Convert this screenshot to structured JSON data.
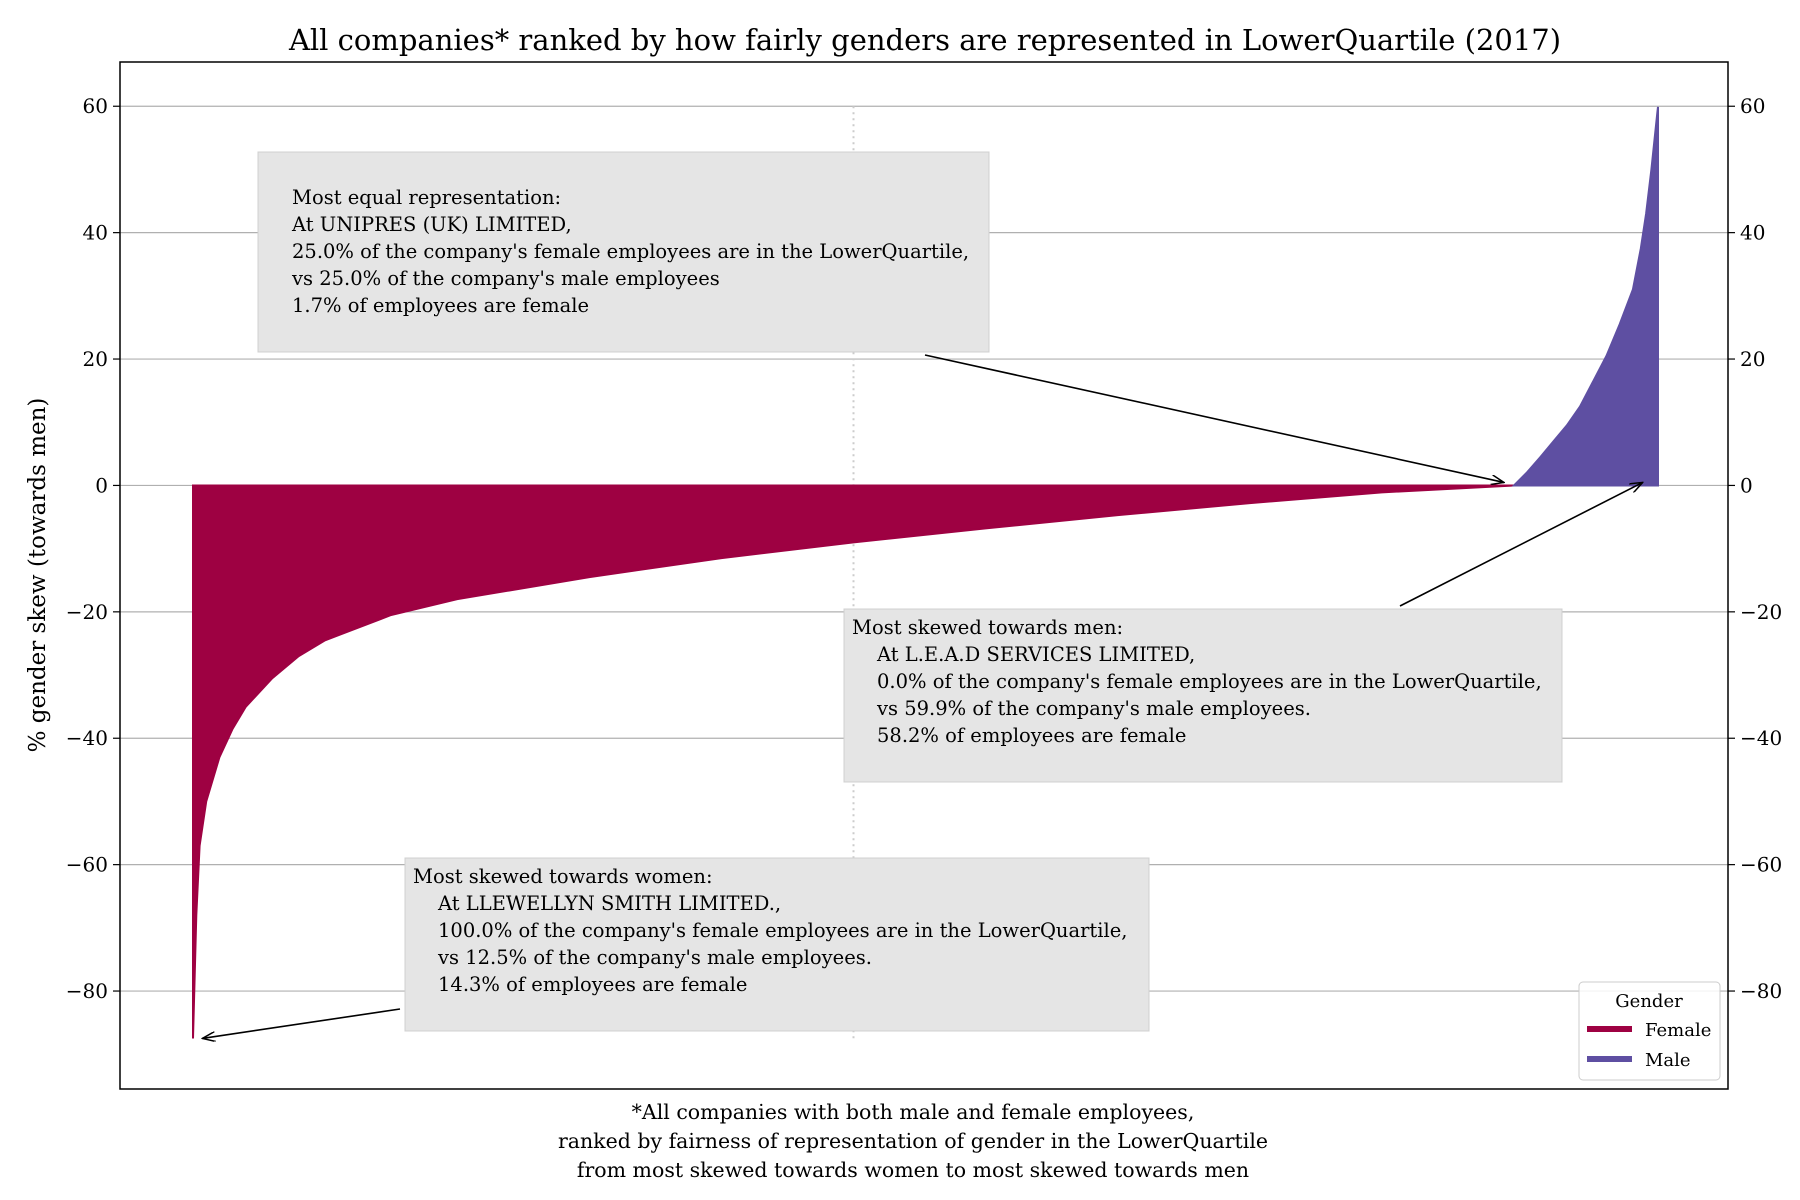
{
  "chart_data": {
    "type": "area",
    "title": "All companies* ranked by how fairly genders are represented in LowerQuartile (2017)",
    "xlabel": "",
    "ylabel": "% gender skew (towards men)",
    "ylim": [
      -95.5,
      67
    ],
    "yticks": [
      60,
      40,
      20,
      0,
      -20,
      -40,
      -60,
      -80
    ],
    "ytick_labels": [
      "60",
      "40",
      "20",
      "0",
      "−20",
      "−40",
      "−60",
      "−80"
    ],
    "grid": true,
    "legend_placement": "lower-right",
    "legend": {
      "title": "Gender",
      "entries": [
        {
          "name": "Female",
          "color": "#9e0142"
        },
        {
          "name": "Male",
          "color": "#5e4fa2"
        }
      ]
    },
    "x": [
      0,
      0.25,
      0.5,
      1,
      2,
      3,
      4,
      6,
      8,
      10,
      15,
      20,
      30,
      40,
      50,
      60,
      70,
      80,
      90,
      100,
      100.001,
      100.5,
      101,
      102,
      103,
      104,
      105,
      106
    ],
    "series": [
      {
        "name": "Female",
        "x": [
          0,
          0.25,
          0.5,
          1,
          2,
          3,
          4,
          6,
          8,
          10,
          15,
          20,
          30,
          40,
          50,
          60,
          70,
          80,
          90,
          100
        ],
        "y": [
          -87.5,
          -68,
          -57,
          -50,
          -43,
          -38.5,
          -35,
          -30.5,
          -27,
          -24.5,
          -20.5,
          -18,
          -14.5,
          -11.5,
          -9,
          -6.8,
          -4.7,
          -2.8,
          -1.1,
          0
        ]
      },
      {
        "name": "Male",
        "x": [
          100,
          101,
          102,
          103,
          104,
          105,
          106
        ],
        "y": [
          0,
          2.1,
          4.5,
          7,
          9.5,
          12.5,
          16.5
        ]
      }
    ],
    "male_tail": {
      "x": [
        106,
        107,
        108,
        109,
        109.6,
        110,
        110.4,
        110.7,
        110.85,
        110.9
      ],
      "y": [
        16.5,
        20.5,
        25.5,
        31,
        37.5,
        43,
        50,
        56,
        59,
        59.9
      ]
    },
    "vline_x": 50,
    "annotations": [
      {
        "lines": [
          "Most equal representation:",
          "At UNIPRES (UK) LIMITED,",
          "25.0% of the company's female employees are in the LowerQuartile,",
          "vs 25.0% of the company's male employees",
          "1.7% of employees are female"
        ],
        "points_to": {
          "x": 100,
          "y": 0
        }
      },
      {
        "lines": [
          "Most skewed towards men:",
          "At L.E.A.D SERVICES LIMITED,",
          "0.0% of the company's female employees are in the LowerQuartile,",
          "vs 59.9% of the company's male employees.",
          "58.2% of employees are female"
        ],
        "points_to": {
          "x": 110.5,
          "y": 0
        }
      },
      {
        "lines": [
          "Most skewed towards women:",
          "At LLEWELLYN SMITH LIMITED.,",
          "100.0% of the company's female employees are in the LowerQuartile,",
          "vs  12.5% of the company's male employees.",
          "14.3% of employees are female"
        ],
        "points_to": {
          "x": 0.4,
          "y": -87.5
        }
      }
    ],
    "footnote": [
      "*All companies with both male and female employees,",
      "ranked by fairness of representation of gender in the LowerQuartile",
      "from most skewed towards women to most skewed towards men"
    ]
  }
}
